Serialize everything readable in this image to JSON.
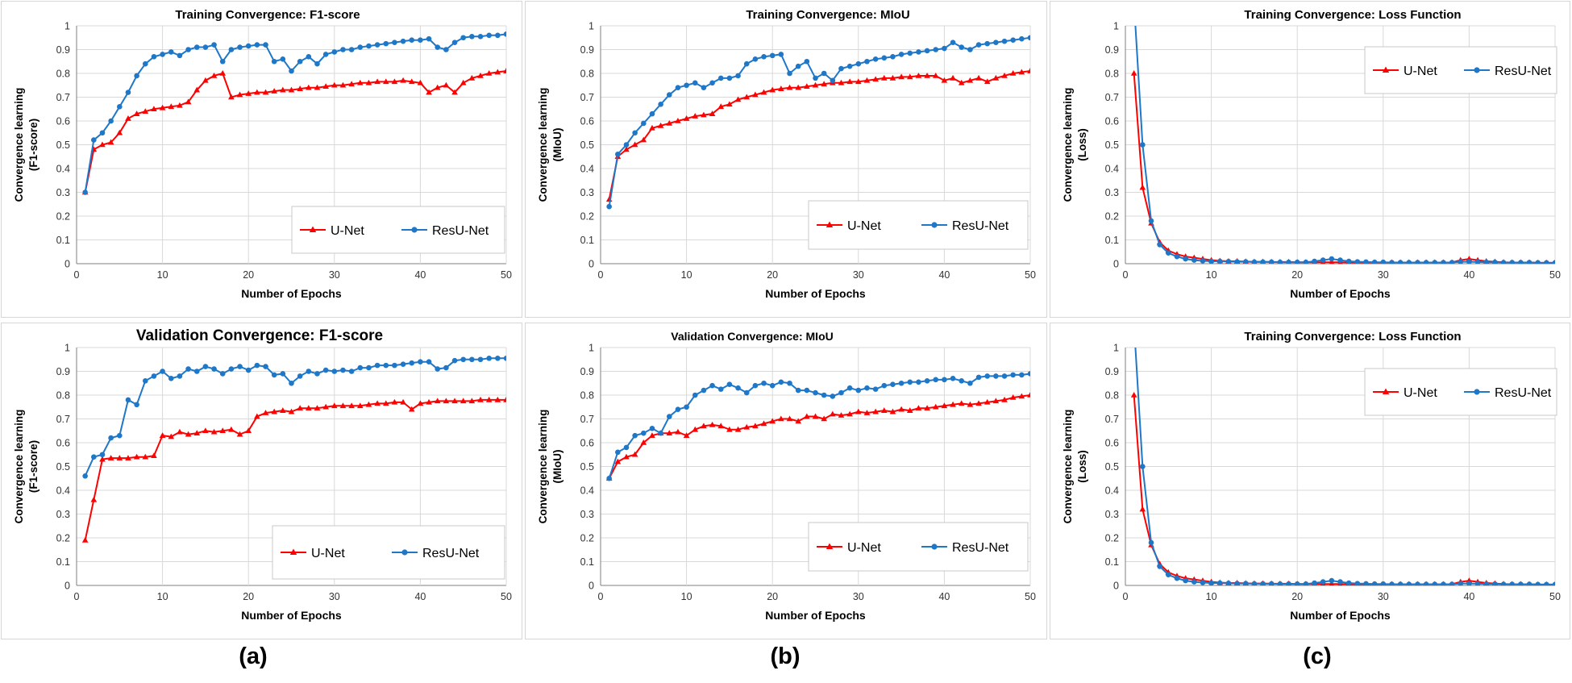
{
  "figure": {
    "labels": [
      "(a)",
      "(b)",
      "(c)"
    ]
  },
  "colors": {
    "unet": "#ff0000",
    "resunet": "#1f77c8",
    "grid": "#d9d9d9",
    "axis": "#7f7f7f"
  },
  "chart_data": [
    {
      "id": "train-f1",
      "type": "line",
      "title": "Training Convergence: F1-score",
      "xlabel": "Number of Epochs",
      "ylabel": [
        "Convergence learning",
        "(F1-score)"
      ],
      "xlim": [
        0,
        50
      ],
      "ylim": [
        0,
        1
      ],
      "xticks": [
        "0",
        "10",
        "20",
        "30",
        "40",
        "50"
      ],
      "yticks": [
        "0",
        "0.1",
        "0.2",
        "0.3",
        "0.4",
        "0.5",
        "0.6",
        "0.7",
        "0.8",
        "0.9",
        "1"
      ],
      "grid": true,
      "legend_position": "bottom-right",
      "series": [
        {
          "name": "U-Net",
          "marker": "triangle",
          "values": [
            0.3,
            0.48,
            0.5,
            0.51,
            0.55,
            0.61,
            0.63,
            0.64,
            0.65,
            0.655,
            0.66,
            0.665,
            0.68,
            0.73,
            0.77,
            0.79,
            0.8,
            0.7,
            0.71,
            0.715,
            0.72,
            0.72,
            0.725,
            0.73,
            0.73,
            0.735,
            0.74,
            0.74,
            0.745,
            0.75,
            0.75,
            0.755,
            0.76,
            0.76,
            0.765,
            0.765,
            0.765,
            0.77,
            0.765,
            0.76,
            0.72,
            0.74,
            0.75,
            0.72,
            0.76,
            0.78,
            0.79,
            0.8,
            0.805,
            0.81
          ]
        },
        {
          "name": "ResU-Net",
          "marker": "circle",
          "values": [
            0.3,
            0.52,
            0.55,
            0.6,
            0.66,
            0.72,
            0.79,
            0.84,
            0.87,
            0.88,
            0.89,
            0.875,
            0.9,
            0.91,
            0.91,
            0.92,
            0.85,
            0.9,
            0.91,
            0.915,
            0.92,
            0.92,
            0.85,
            0.86,
            0.81,
            0.85,
            0.87,
            0.84,
            0.88,
            0.89,
            0.9,
            0.9,
            0.91,
            0.915,
            0.92,
            0.925,
            0.93,
            0.935,
            0.94,
            0.94,
            0.945,
            0.91,
            0.9,
            0.93,
            0.95,
            0.955,
            0.955,
            0.96,
            0.96,
            0.965
          ]
        }
      ]
    },
    {
      "id": "train-miou",
      "type": "line",
      "title": "Training Convergence: MIoU",
      "xlabel": "Number of Epochs",
      "ylabel": [
        "Convergence learning",
        "(MIoU)"
      ],
      "xlim": [
        0,
        50
      ],
      "ylim": [
        0,
        1
      ],
      "xticks": [
        "0",
        "10",
        "20",
        "30",
        "40",
        "50"
      ],
      "yticks": [
        "0",
        "0.1",
        "0.2",
        "0.3",
        "0.4",
        "0.5",
        "0.6",
        "0.7",
        "0.8",
        "0.9",
        "1"
      ],
      "grid": true,
      "legend_position": "bottom-right",
      "series": [
        {
          "name": "U-Net",
          "marker": "triangle",
          "values": [
            0.27,
            0.45,
            0.48,
            0.5,
            0.52,
            0.57,
            0.58,
            0.59,
            0.6,
            0.61,
            0.62,
            0.625,
            0.63,
            0.66,
            0.67,
            0.69,
            0.7,
            0.71,
            0.72,
            0.73,
            0.735,
            0.74,
            0.74,
            0.745,
            0.75,
            0.755,
            0.76,
            0.76,
            0.765,
            0.765,
            0.77,
            0.775,
            0.78,
            0.78,
            0.785,
            0.785,
            0.79,
            0.79,
            0.79,
            0.77,
            0.78,
            0.76,
            0.77,
            0.78,
            0.765,
            0.78,
            0.79,
            0.8,
            0.805,
            0.81
          ]
        },
        {
          "name": "ResU-Net",
          "marker": "circle",
          "values": [
            0.24,
            0.46,
            0.5,
            0.55,
            0.59,
            0.63,
            0.67,
            0.71,
            0.74,
            0.75,
            0.76,
            0.74,
            0.76,
            0.78,
            0.78,
            0.79,
            0.84,
            0.86,
            0.87,
            0.875,
            0.88,
            0.8,
            0.83,
            0.85,
            0.78,
            0.8,
            0.77,
            0.82,
            0.83,
            0.84,
            0.85,
            0.86,
            0.865,
            0.87,
            0.88,
            0.885,
            0.89,
            0.895,
            0.9,
            0.905,
            0.93,
            0.91,
            0.9,
            0.92,
            0.925,
            0.93,
            0.935,
            0.94,
            0.945,
            0.95
          ]
        }
      ]
    },
    {
      "id": "train-loss",
      "type": "line",
      "title": "Training Convergence: Loss Function",
      "xlabel": "Number of Epochs",
      "ylabel": [
        "Convergence learning",
        "(Loss)"
      ],
      "xlim": [
        0,
        50
      ],
      "ylim": [
        0,
        1
      ],
      "xticks": [
        "0",
        "10",
        "20",
        "30",
        "40",
        "50"
      ],
      "yticks": [
        "0",
        "0.1",
        "0.2",
        "0.3",
        "0.4",
        "0.5",
        "0.6",
        "0.7",
        "0.8",
        "0.9",
        "1"
      ],
      "grid": true,
      "legend_position": "top-right",
      "series": [
        {
          "name": "U-Net",
          "marker": "triangle",
          "values": [
            0.8,
            0.32,
            0.17,
            0.09,
            0.055,
            0.04,
            0.03,
            0.025,
            0.02,
            0.015,
            0.012,
            0.01,
            0.01,
            0.009,
            0.008,
            0.008,
            0.007,
            0.007,
            0.007,
            0.006,
            0.006,
            0.006,
            0.006,
            0.006,
            0.006,
            0.005,
            0.005,
            0.005,
            0.005,
            0.005,
            0.005,
            0.005,
            0.005,
            0.005,
            0.005,
            0.005,
            0.005,
            0.005,
            0.015,
            0.02,
            0.015,
            0.01,
            0.008,
            0.006,
            0.005,
            0.005,
            0.005,
            0.004,
            0.004,
            0.004
          ]
        },
        {
          "name": "ResU-Net",
          "marker": "circle",
          "values": [
            1.1,
            0.5,
            0.18,
            0.08,
            0.045,
            0.03,
            0.02,
            0.015,
            0.012,
            0.01,
            0.01,
            0.009,
            0.008,
            0.008,
            0.007,
            0.007,
            0.007,
            0.006,
            0.006,
            0.006,
            0.006,
            0.01,
            0.015,
            0.02,
            0.015,
            0.01,
            0.008,
            0.007,
            0.006,
            0.006,
            0.005,
            0.005,
            0.005,
            0.005,
            0.005,
            0.005,
            0.005,
            0.005,
            0.008,
            0.008,
            0.007,
            0.006,
            0.006,
            0.005,
            0.005,
            0.005,
            0.005,
            0.004,
            0.004,
            0.004
          ]
        }
      ]
    },
    {
      "id": "val-f1",
      "type": "line",
      "title": "Validation Convergence: F1-score",
      "xlabel": "Number of Epochs",
      "ylabel": [
        "Convergence learning",
        "(F1-score)"
      ],
      "xlim": [
        0,
        50
      ],
      "ylim": [
        0,
        1
      ],
      "xticks": [
        "0",
        "10",
        "20",
        "30",
        "40",
        "50"
      ],
      "yticks": [
        "0",
        "0.1",
        "0.2",
        "0.3",
        "0.4",
        "0.5",
        "0.6",
        "0.7",
        "0.8",
        "0.9",
        "1"
      ],
      "grid": true,
      "legend_position": "bottom-right",
      "series": [
        {
          "name": "U-Net",
          "marker": "triangle",
          "values": [
            0.19,
            0.36,
            0.53,
            0.535,
            0.535,
            0.535,
            0.54,
            0.54,
            0.545,
            0.63,
            0.625,
            0.645,
            0.635,
            0.64,
            0.65,
            0.645,
            0.65,
            0.655,
            0.635,
            0.65,
            0.71,
            0.725,
            0.73,
            0.735,
            0.73,
            0.745,
            0.745,
            0.745,
            0.75,
            0.755,
            0.755,
            0.755,
            0.755,
            0.76,
            0.765,
            0.765,
            0.77,
            0.77,
            0.74,
            0.765,
            0.77,
            0.775,
            0.775,
            0.775,
            0.775,
            0.775,
            0.78,
            0.78,
            0.78,
            0.78
          ]
        },
        {
          "name": "ResU-Net",
          "marker": "circle",
          "values": [
            0.46,
            0.54,
            0.55,
            0.62,
            0.63,
            0.78,
            0.76,
            0.86,
            0.88,
            0.9,
            0.87,
            0.88,
            0.91,
            0.9,
            0.92,
            0.91,
            0.89,
            0.91,
            0.92,
            0.905,
            0.925,
            0.92,
            0.885,
            0.89,
            0.85,
            0.88,
            0.9,
            0.89,
            0.905,
            0.9,
            0.905,
            0.9,
            0.915,
            0.915,
            0.925,
            0.925,
            0.925,
            0.93,
            0.935,
            0.94,
            0.94,
            0.91,
            0.915,
            0.945,
            0.95,
            0.95,
            0.95,
            0.955,
            0.955,
            0.955
          ]
        }
      ]
    },
    {
      "id": "val-miou",
      "type": "line",
      "title": "Validation Convergence: MIoU",
      "xlabel": "Number of Epochs",
      "ylabel": [
        "Convergence learning",
        "(MIoU)"
      ],
      "xlim": [
        0,
        50
      ],
      "ylim": [
        0,
        1
      ],
      "xticks": [
        "0",
        "10",
        "20",
        "30",
        "40",
        "50"
      ],
      "yticks": [
        "0",
        "0.1",
        "0.2",
        "0.3",
        "0.4",
        "0.5",
        "0.6",
        "0.7",
        "0.8",
        "0.9",
        "1"
      ],
      "grid": true,
      "legend_position": "bottom-right",
      "series": [
        {
          "name": "U-Net",
          "marker": "triangle",
          "values": [
            0.45,
            0.52,
            0.54,
            0.55,
            0.6,
            0.63,
            0.64,
            0.64,
            0.645,
            0.63,
            0.655,
            0.67,
            0.675,
            0.67,
            0.655,
            0.655,
            0.665,
            0.67,
            0.68,
            0.69,
            0.7,
            0.7,
            0.69,
            0.71,
            0.71,
            0.7,
            0.72,
            0.715,
            0.72,
            0.73,
            0.725,
            0.73,
            0.735,
            0.73,
            0.74,
            0.735,
            0.745,
            0.745,
            0.75,
            0.755,
            0.76,
            0.765,
            0.76,
            0.765,
            0.77,
            0.775,
            0.78,
            0.79,
            0.795,
            0.8
          ]
        },
        {
          "name": "ResU-Net",
          "marker": "circle",
          "values": [
            0.45,
            0.56,
            0.58,
            0.63,
            0.64,
            0.66,
            0.64,
            0.71,
            0.74,
            0.75,
            0.8,
            0.82,
            0.84,
            0.825,
            0.845,
            0.83,
            0.81,
            0.84,
            0.85,
            0.84,
            0.855,
            0.85,
            0.82,
            0.82,
            0.81,
            0.8,
            0.795,
            0.81,
            0.83,
            0.82,
            0.83,
            0.825,
            0.84,
            0.845,
            0.85,
            0.855,
            0.855,
            0.86,
            0.865,
            0.865,
            0.87,
            0.86,
            0.85,
            0.875,
            0.88,
            0.88,
            0.88,
            0.885,
            0.885,
            0.89
          ]
        }
      ]
    },
    {
      "id": "val-loss",
      "type": "line",
      "title": "Training Convergence: Loss Function",
      "xlabel": "Number of Epochs",
      "ylabel": [
        "Convergence learning",
        "(Loss)"
      ],
      "xlim": [
        0,
        50
      ],
      "ylim": [
        0,
        1
      ],
      "xticks": [
        "0",
        "10",
        "20",
        "30",
        "40",
        "50"
      ],
      "yticks": [
        "0",
        "0.1",
        "0.2",
        "0.3",
        "0.4",
        "0.5",
        "0.6",
        "0.7",
        "0.8",
        "0.9",
        "1"
      ],
      "grid": true,
      "legend_position": "top-right",
      "series": [
        {
          "name": "U-Net",
          "marker": "triangle",
          "values": [
            0.8,
            0.32,
            0.17,
            0.09,
            0.055,
            0.04,
            0.03,
            0.025,
            0.02,
            0.015,
            0.012,
            0.01,
            0.01,
            0.009,
            0.008,
            0.008,
            0.007,
            0.007,
            0.007,
            0.006,
            0.006,
            0.006,
            0.006,
            0.006,
            0.006,
            0.005,
            0.005,
            0.005,
            0.005,
            0.005,
            0.005,
            0.005,
            0.005,
            0.005,
            0.005,
            0.005,
            0.005,
            0.005,
            0.015,
            0.02,
            0.015,
            0.01,
            0.008,
            0.006,
            0.005,
            0.005,
            0.005,
            0.004,
            0.004,
            0.004
          ]
        },
        {
          "name": "ResU-Net",
          "marker": "circle",
          "values": [
            1.1,
            0.5,
            0.18,
            0.08,
            0.045,
            0.03,
            0.02,
            0.015,
            0.012,
            0.01,
            0.01,
            0.009,
            0.008,
            0.008,
            0.007,
            0.007,
            0.007,
            0.006,
            0.006,
            0.006,
            0.006,
            0.01,
            0.015,
            0.02,
            0.015,
            0.01,
            0.008,
            0.007,
            0.006,
            0.006,
            0.005,
            0.005,
            0.005,
            0.005,
            0.005,
            0.005,
            0.005,
            0.005,
            0.008,
            0.008,
            0.007,
            0.006,
            0.006,
            0.005,
            0.005,
            0.005,
            0.005,
            0.004,
            0.004,
            0.004
          ]
        }
      ]
    }
  ]
}
